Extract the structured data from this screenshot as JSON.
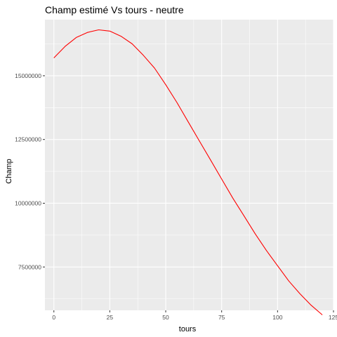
{
  "chart_data": {
    "type": "line",
    "title": "Champ estimé Vs tours - neutre",
    "xlabel": "tours",
    "ylabel": "Champ",
    "xlim": [
      -4,
      125
    ],
    "ylim": [
      5800000,
      17200000
    ],
    "x_ticks": [
      0,
      25,
      50,
      75,
      100,
      125
    ],
    "x_tick_labels": [
      "0",
      "25",
      "50",
      "75",
      "100",
      "125"
    ],
    "y_ticks": [
      7500000,
      10000000,
      12500000,
      15000000
    ],
    "y_tick_labels": [
      "7500000",
      "10000000",
      "12500000",
      "15000000"
    ],
    "grid": true,
    "legend": "none",
    "colors": {
      "panel": "#ebebeb",
      "grid": "#ffffff",
      "line": "#ff0000",
      "tick_text": "#4d4d4d"
    },
    "series": [
      {
        "x": [
          0,
          5,
          10,
          15,
          20,
          25,
          30,
          35,
          40,
          45,
          50,
          55,
          60,
          65,
          70,
          75,
          80,
          85,
          90,
          95,
          100,
          105,
          110,
          115,
          120
        ],
        "y": [
          15700000,
          16150000,
          16500000,
          16700000,
          16800000,
          16750000,
          16550000,
          16250000,
          15800000,
          15300000,
          14650000,
          13950000,
          13200000,
          12450000,
          11700000,
          10950000,
          10200000,
          9500000,
          8800000,
          8150000,
          7550000,
          6950000,
          6450000,
          6000000,
          5620000
        ]
      }
    ]
  }
}
